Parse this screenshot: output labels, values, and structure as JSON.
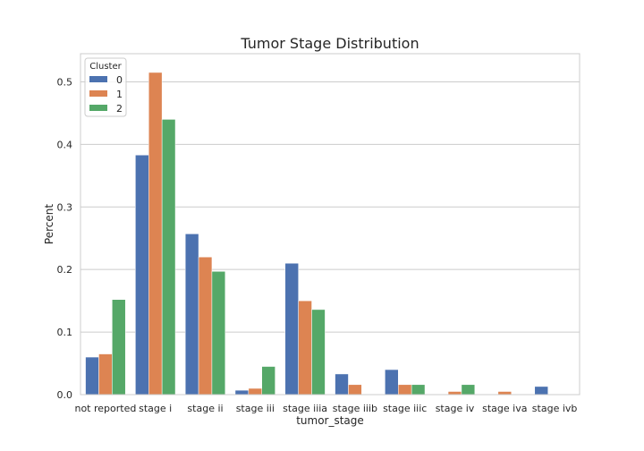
{
  "chart_data": {
    "type": "bar",
    "title": "Tumor Stage Distribution",
    "xlabel": "tumor_stage",
    "ylabel": "Percent",
    "categories": [
      "not reported",
      "stage i",
      "stage ii",
      "stage iii",
      "stage iiia",
      "stage iiib",
      "stage iiic",
      "stage iv",
      "stage iva",
      "stage ivb"
    ],
    "ylim": [
      0,
      0.545
    ],
    "yticks": [
      0.0,
      0.1,
      0.2,
      0.3,
      0.4,
      0.5
    ],
    "ytick_labels": [
      "0.0",
      "0.1",
      "0.2",
      "0.3",
      "0.4",
      "0.5"
    ],
    "grid": true,
    "legend": {
      "title": "Cluster",
      "placement": "top-left"
    },
    "series": [
      {
        "name": "0",
        "color": "#4c72b0",
        "values": [
          0.06,
          0.383,
          0.257,
          0.007,
          0.21,
          0.033,
          0.04,
          0.0,
          0.0,
          0.013
        ]
      },
      {
        "name": "1",
        "color": "#dd8452",
        "values": [
          0.065,
          0.515,
          0.22,
          0.01,
          0.15,
          0.016,
          0.016,
          0.005,
          0.005,
          0.0
        ]
      },
      {
        "name": "2",
        "color": "#55a868",
        "values": [
          0.152,
          0.44,
          0.197,
          0.045,
          0.136,
          0.0,
          0.016,
          0.016,
          0.0,
          0.0
        ]
      }
    ]
  }
}
